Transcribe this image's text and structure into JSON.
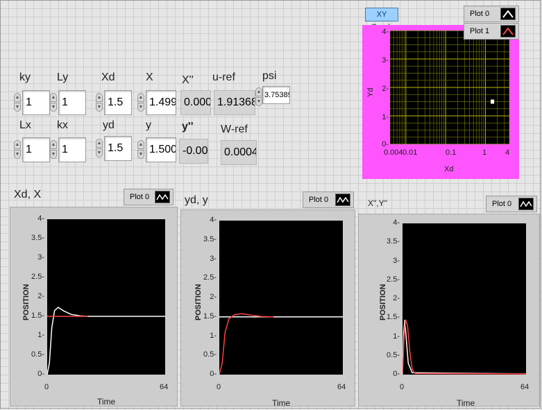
{
  "controls": {
    "ky": {
      "label": "ky",
      "value": "1"
    },
    "Ly": {
      "label": "Ly",
      "value": "1"
    },
    "Xd": {
      "label": "Xd",
      "value": "1.5"
    },
    "X": {
      "label": "X",
      "value": "1.499"
    },
    "Xpp": {
      "label": "X''",
      "value": "0.000"
    },
    "uref": {
      "label": "u-ref",
      "value": "1.91368"
    },
    "psi": {
      "label": "psi",
      "value": "3.75389"
    },
    "Lx": {
      "label": "Lx",
      "value": "1"
    },
    "kx": {
      "label": "kx",
      "value": "1"
    },
    "yd": {
      "label": "yd",
      "value": "1.5"
    },
    "y": {
      "label": "y",
      "value": "1.500"
    },
    "ypp": {
      "label": "y''",
      "value": "-0.00"
    },
    "Wref": {
      "label": "W-ref",
      "value": "0.0004"
    }
  },
  "xy_graph": {
    "title": "XY Graph",
    "legend": [
      "Plot 0",
      "Plot 1"
    ],
    "xlabel": "Xd",
    "ylabel": "Yd",
    "xticks": [
      "0.004",
      "0.01",
      "0.1",
      "1",
      "4"
    ],
    "yticks": [
      "4-",
      "3-",
      "2-",
      "1-",
      "0-"
    ]
  },
  "graphs": [
    {
      "title": "Xd, X",
      "legend": "Plot 0",
      "ylabel": "POSITION",
      "xlabel": "Time",
      "xmin": "0",
      "xmax": "64",
      "yticks": [
        "4-",
        "3.5-",
        "3-",
        "2.5-",
        "2-",
        "1.5-",
        "1-",
        "0.5-",
        "0-"
      ]
    },
    {
      "title": "yd, y",
      "legend": "Plot 0",
      "ylabel": "POSITION",
      "xlabel": "Time",
      "xmin": "0",
      "xmax": "64",
      "yticks": [
        "4-",
        "3.5-",
        "3-",
        "2.5-",
        "2-",
        "1.5-",
        "1-",
        "0.5-",
        "0-"
      ]
    },
    {
      "title": "X\",Y\"",
      "legend": "Plot 0",
      "ylabel": "POSITION",
      "xlabel": "Time",
      "xmin": "0",
      "xmax": "64",
      "yticks": [
        "4-",
        "3.5-",
        "3-",
        "2.5-",
        "2-",
        "1.5-",
        "1-",
        "0.5-",
        "0-"
      ]
    }
  ],
  "chart_data": [
    {
      "type": "scatter",
      "title": "XY Graph",
      "xlabel": "Xd",
      "ylabel": "Yd",
      "xscale": "log",
      "xlim": [
        0.004,
        4
      ],
      "ylim": [
        0,
        4
      ],
      "grid": true,
      "series": [
        {
          "name": "Plot 1",
          "color": "#ff4040",
          "points": [
            [
              1.5,
              1.5
            ]
          ]
        },
        {
          "name": "Plot 0",
          "color": "#ffffff",
          "points": [
            [
              1.5,
              1.5
            ]
          ]
        }
      ]
    },
    {
      "type": "line",
      "title": "Xd, X",
      "xlabel": "Time",
      "ylabel": "POSITION",
      "xlim": [
        0,
        64
      ],
      "ylim": [
        0,
        4
      ],
      "series": [
        {
          "color": "#ffffff",
          "points": [
            [
              0,
              0
            ],
            [
              1.2,
              0.3
            ],
            [
              2.5,
              1.2
            ],
            [
              4,
              1.65
            ],
            [
              6,
              1.73
            ],
            [
              9,
              1.64
            ],
            [
              13,
              1.55
            ],
            [
              18,
              1.51
            ],
            [
              22,
              1.5
            ],
            [
              64,
              1.5
            ]
          ]
        },
        {
          "color": "#ff4040",
          "points": [
            [
              0,
              1.5
            ],
            [
              22,
              1.5
            ]
          ]
        }
      ]
    },
    {
      "type": "line",
      "title": "yd, y",
      "xlabel": "Time",
      "ylabel": "POSITION",
      "xlim": [
        0,
        64
      ],
      "ylim": [
        0,
        4
      ],
      "series": [
        {
          "color": "#ffffff",
          "points": [
            [
              0,
              1.5
            ],
            [
              64,
              1.5
            ]
          ]
        },
        {
          "color": "#ff4040",
          "points": [
            [
              0,
              0
            ],
            [
              1.5,
              0.3
            ],
            [
              3,
              1.1
            ],
            [
              5,
              1.45
            ],
            [
              8,
              1.56
            ],
            [
              12,
              1.58
            ],
            [
              17,
              1.54
            ],
            [
              22,
              1.51
            ],
            [
              28,
              1.5
            ]
          ]
        }
      ]
    },
    {
      "type": "line",
      "title": "X\",Y\"",
      "xlabel": "Time",
      "ylabel": "POSITION",
      "xlim": [
        0,
        64
      ],
      "ylim": [
        0,
        4
      ],
      "series": [
        {
          "color": "#ffffff",
          "points": [
            [
              0,
              0
            ],
            [
              0.6,
              1.1
            ],
            [
              1.2,
              1.45
            ],
            [
              2,
              0.9
            ],
            [
              3,
              0.3
            ],
            [
              5,
              0.05
            ],
            [
              64,
              0.02
            ]
          ]
        },
        {
          "color": "#ff4040",
          "points": [
            [
              0,
              0
            ],
            [
              0.8,
              1.0
            ],
            [
              1.6,
              1.45
            ],
            [
              2.6,
              1.3
            ],
            [
              3.8,
              0.6
            ],
            [
              5,
              0.15
            ],
            [
              6.5,
              0.03
            ],
            [
              64,
              0.02
            ]
          ]
        }
      ]
    }
  ]
}
